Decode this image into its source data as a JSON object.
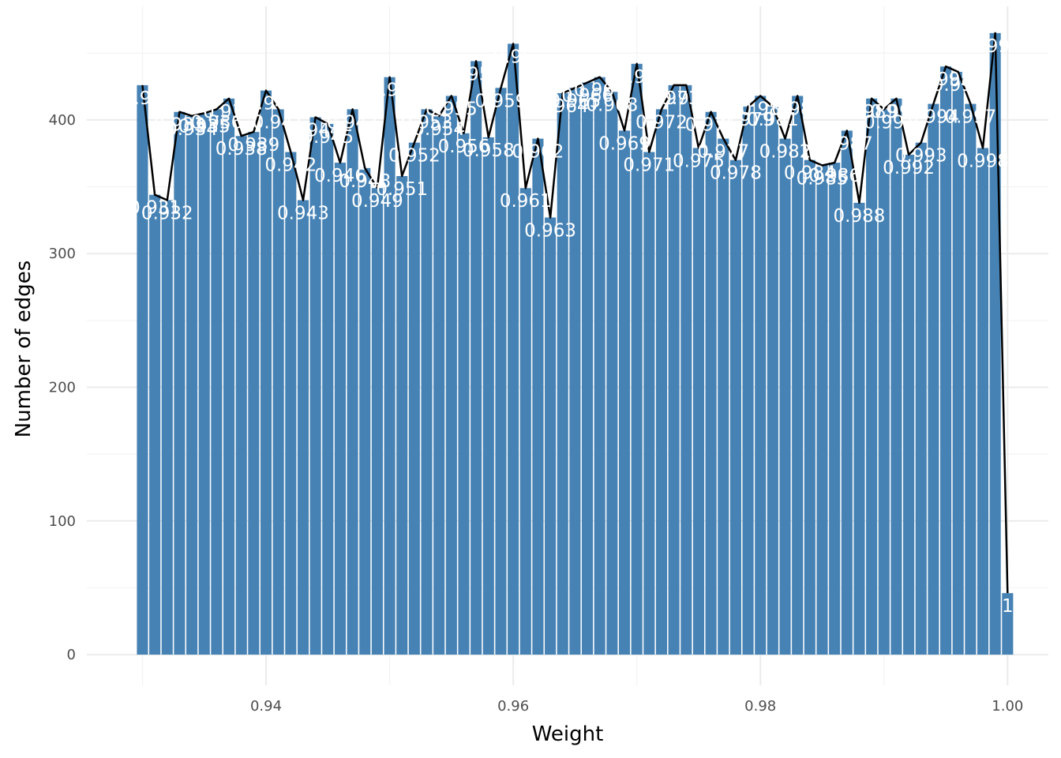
{
  "chart_data": {
    "type": "bar",
    "title": "",
    "xlabel": "Weight",
    "ylabel": "Number of edges",
    "xlim": [
      0.9255,
      1.0033
    ],
    "ylim": [
      -23,
      485
    ],
    "x_ticks": [
      "0.94",
      "0.96",
      "0.98",
      "1.00"
    ],
    "y_ticks": [
      "0",
      "100",
      "200",
      "300",
      "400"
    ],
    "grid": true,
    "legend": "none",
    "colors": {
      "bar": "#4682b4",
      "line": "#000000",
      "label": "#ffffff",
      "grid": "#ebebeb"
    },
    "x": [
      0.93,
      0.931,
      0.932,
      0.933,
      0.934,
      0.935,
      0.936,
      0.937,
      0.938,
      0.939,
      0.94,
      0.941,
      0.942,
      0.943,
      0.944,
      0.945,
      0.946,
      0.947,
      0.948,
      0.949,
      0.95,
      0.951,
      0.952,
      0.953,
      0.954,
      0.955,
      0.956,
      0.957,
      0.958,
      0.959,
      0.96,
      0.961,
      0.962,
      0.963,
      0.964,
      0.965,
      0.966,
      0.967,
      0.968,
      0.969,
      0.97,
      0.971,
      0.972,
      0.973,
      0.974,
      0.975,
      0.976,
      0.977,
      0.978,
      0.979,
      0.98,
      0.981,
      0.982,
      0.983,
      0.984,
      0.985,
      0.986,
      0.987,
      0.988,
      0.989,
      0.99,
      0.991,
      0.992,
      0.993,
      0.994,
      0.995,
      0.996,
      0.997,
      0.998,
      0.999,
      1.0
    ],
    "values": [
      426,
      344,
      340,
      406,
      403,
      405,
      408,
      416,
      388,
      391,
      422,
      408,
      376,
      340,
      402,
      397,
      368,
      408,
      364,
      349,
      432,
      358,
      383,
      408,
      403,
      418,
      390,
      444,
      387,
      424,
      457,
      349,
      386,
      327,
      420,
      424,
      428,
      432,
      421,
      392,
      442,
      376,
      408,
      426,
      426,
      379,
      406,
      386,
      370,
      410,
      418,
      410,
      386,
      418,
      370,
      366,
      368,
      392,
      338,
      416,
      408,
      416,
      374,
      383,
      412,
      440,
      436,
      412,
      379,
      465,
      46
    ],
    "labels": [
      "0.93",
      "0.931",
      "0.932",
      "0.933",
      "0.934",
      "0.935",
      "0.936",
      "0.937",
      "0.938",
      "0.939",
      "0.94",
      "0.941",
      "0.942",
      "0.943",
      "0.944",
      "0.945",
      "0.946",
      "0.947",
      "0.948",
      "0.949",
      "0.95",
      "0.951",
      "0.952",
      "0.953",
      "0.954",
      "0.955",
      "0.956",
      "0.957",
      "0.958",
      "0.959",
      "0.96",
      "0.961",
      "0.962",
      "0.963",
      "0.964",
      "0.965",
      "0.966",
      "0.967",
      "0.968",
      "0.969",
      "0.97",
      "0.971",
      "0.972",
      "0.973",
      "0.974",
      "0.975",
      "0.976",
      "0.977",
      "0.978",
      "0.979",
      "0.98",
      "0.981",
      "0.982",
      "0.983",
      "0.984",
      "0.985",
      "0.986",
      "0.987",
      "0.988",
      "0.989",
      "0.99",
      "0.991",
      "0.992",
      "0.993",
      "0.994",
      "0.995",
      "0.996",
      "0.997",
      "0.998",
      "0.999",
      "1"
    ]
  }
}
